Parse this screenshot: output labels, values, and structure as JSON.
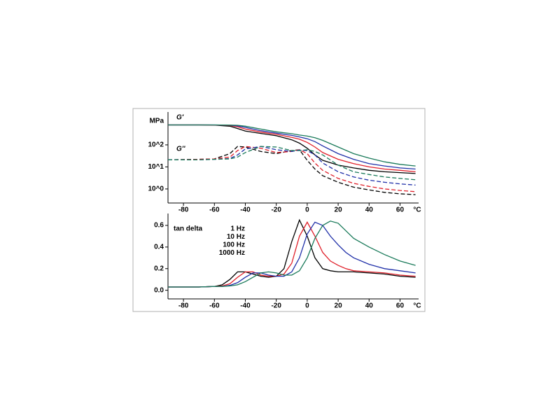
{
  "chart_data": [
    {
      "type": "line",
      "log_y": true,
      "unit_label": "MPa",
      "x_unit_label": "°C",
      "annotations": [
        "G'",
        "G''"
      ],
      "x": [
        -90,
        -70,
        -60,
        -50,
        -45,
        -40,
        -30,
        -20,
        -10,
        -5,
        0,
        5,
        10,
        20,
        30,
        40,
        50,
        60,
        70
      ],
      "xlim": [
        -90,
        72
      ],
      "xticks": [
        -80,
        -60,
        -40,
        -20,
        0,
        20,
        40,
        60
      ],
      "ylim": [
        0.23,
        3100
      ],
      "yticks": [
        {
          "value": 1,
          "label": "10^0"
        },
        {
          "value": 10,
          "label": "10^1"
        },
        {
          "value": 100,
          "label": "10^2"
        }
      ],
      "series": [
        {
          "color": "#000000",
          "dash": false,
          "values": [
            800,
            800,
            790,
            700,
            550,
            420,
            330,
            260,
            170,
            120,
            70,
            35,
            20,
            12,
            9,
            7,
            6,
            5.5,
            5
          ]
        },
        {
          "color": "#e0202a",
          "dash": false,
          "values": [
            800,
            800,
            795,
            760,
            660,
            520,
            380,
            300,
            220,
            180,
            130,
            80,
            45,
            22,
            14,
            10,
            8,
            7,
            6
          ]
        },
        {
          "color": "#1f2fa8",
          "dash": false,
          "values": [
            800,
            800,
            800,
            780,
            730,
            620,
            440,
            340,
            270,
            230,
            190,
            140,
            90,
            40,
            22,
            14,
            11,
            9,
            8
          ]
        },
        {
          "color": "#1a7a5a",
          "dash": false,
          "values": [
            800,
            800,
            800,
            790,
            770,
            700,
            520,
            390,
            320,
            280,
            250,
            210,
            160,
            80,
            40,
            25,
            17,
            13,
            11
          ]
        },
        {
          "color": "#000000",
          "dash": true,
          "values": [
            21,
            22,
            23,
            40,
            85,
            80,
            50,
            40,
            55,
            60,
            20,
            8,
            4,
            2,
            1.2,
            0.9,
            0.7,
            0.6,
            0.55
          ]
        },
        {
          "color": "#e0202a",
          "dash": true,
          "values": [
            21,
            22,
            23,
            28,
            55,
            85,
            70,
            45,
            50,
            60,
            40,
            15,
            7,
            3,
            1.8,
            1.3,
            1,
            0.85,
            0.75
          ]
        },
        {
          "color": "#1f2fa8",
          "dash": true,
          "values": [
            21,
            21,
            22,
            24,
            35,
            65,
            85,
            60,
            50,
            58,
            55,
            35,
            15,
            6,
            3.5,
            2.5,
            2,
            1.7,
            1.5
          ]
        },
        {
          "color": "#1a7a5a",
          "dash": true,
          "values": [
            21,
            21,
            22,
            23,
            28,
            45,
            85,
            80,
            55,
            55,
            60,
            50,
            35,
            12,
            6,
            4.5,
            3.5,
            3,
            2.6
          ]
        }
      ]
    },
    {
      "type": "line",
      "log_y": false,
      "ylabel": "tan delta",
      "x_unit_label": "°C",
      "x": [
        -90,
        -70,
        -60,
        -55,
        -50,
        -45,
        -40,
        -35,
        -30,
        -25,
        -20,
        -15,
        -10,
        -5,
        0,
        5,
        10,
        15,
        20,
        25,
        30,
        40,
        50,
        60,
        70
      ],
      "xlim": [
        -90,
        72
      ],
      "xticks": [
        -80,
        -60,
        -40,
        -20,
        0,
        20,
        40,
        60
      ],
      "ylim": [
        -0.08,
        0.71
      ],
      "yticks": [
        {
          "value": 0,
          "label": "0.0"
        },
        0.2,
        0.4,
        0.6
      ],
      "legend": "upper left",
      "series": [
        {
          "name": "1 Hz",
          "color": "#000000",
          "values": [
            0.03,
            0.03,
            0.035,
            0.05,
            0.1,
            0.17,
            0.17,
            0.15,
            0.13,
            0.12,
            0.13,
            0.2,
            0.45,
            0.65,
            0.5,
            0.3,
            0.2,
            0.18,
            0.17,
            0.17,
            0.17,
            0.16,
            0.15,
            0.13,
            0.12
          ]
        },
        {
          "name": "10 Hz",
          "color": "#e0202a",
          "values": [
            0.03,
            0.03,
            0.035,
            0.04,
            0.06,
            0.12,
            0.17,
            0.17,
            0.14,
            0.13,
            0.13,
            0.15,
            0.25,
            0.5,
            0.63,
            0.5,
            0.35,
            0.27,
            0.23,
            0.2,
            0.18,
            0.17,
            0.16,
            0.14,
            0.13
          ]
        },
        {
          "name": "100 Hz",
          "color": "#1f2fa8",
          "values": [
            0.03,
            0.03,
            0.035,
            0.035,
            0.045,
            0.07,
            0.12,
            0.16,
            0.16,
            0.14,
            0.13,
            0.13,
            0.17,
            0.3,
            0.52,
            0.63,
            0.6,
            0.5,
            0.42,
            0.35,
            0.3,
            0.24,
            0.2,
            0.18,
            0.16
          ]
        },
        {
          "name": "1000 Hz",
          "color": "#1a7a5a",
          "values": [
            0.03,
            0.03,
            0.035,
            0.035,
            0.04,
            0.05,
            0.08,
            0.12,
            0.16,
            0.17,
            0.16,
            0.14,
            0.14,
            0.18,
            0.3,
            0.48,
            0.6,
            0.64,
            0.62,
            0.55,
            0.48,
            0.4,
            0.33,
            0.27,
            0.23
          ]
        }
      ]
    }
  ]
}
